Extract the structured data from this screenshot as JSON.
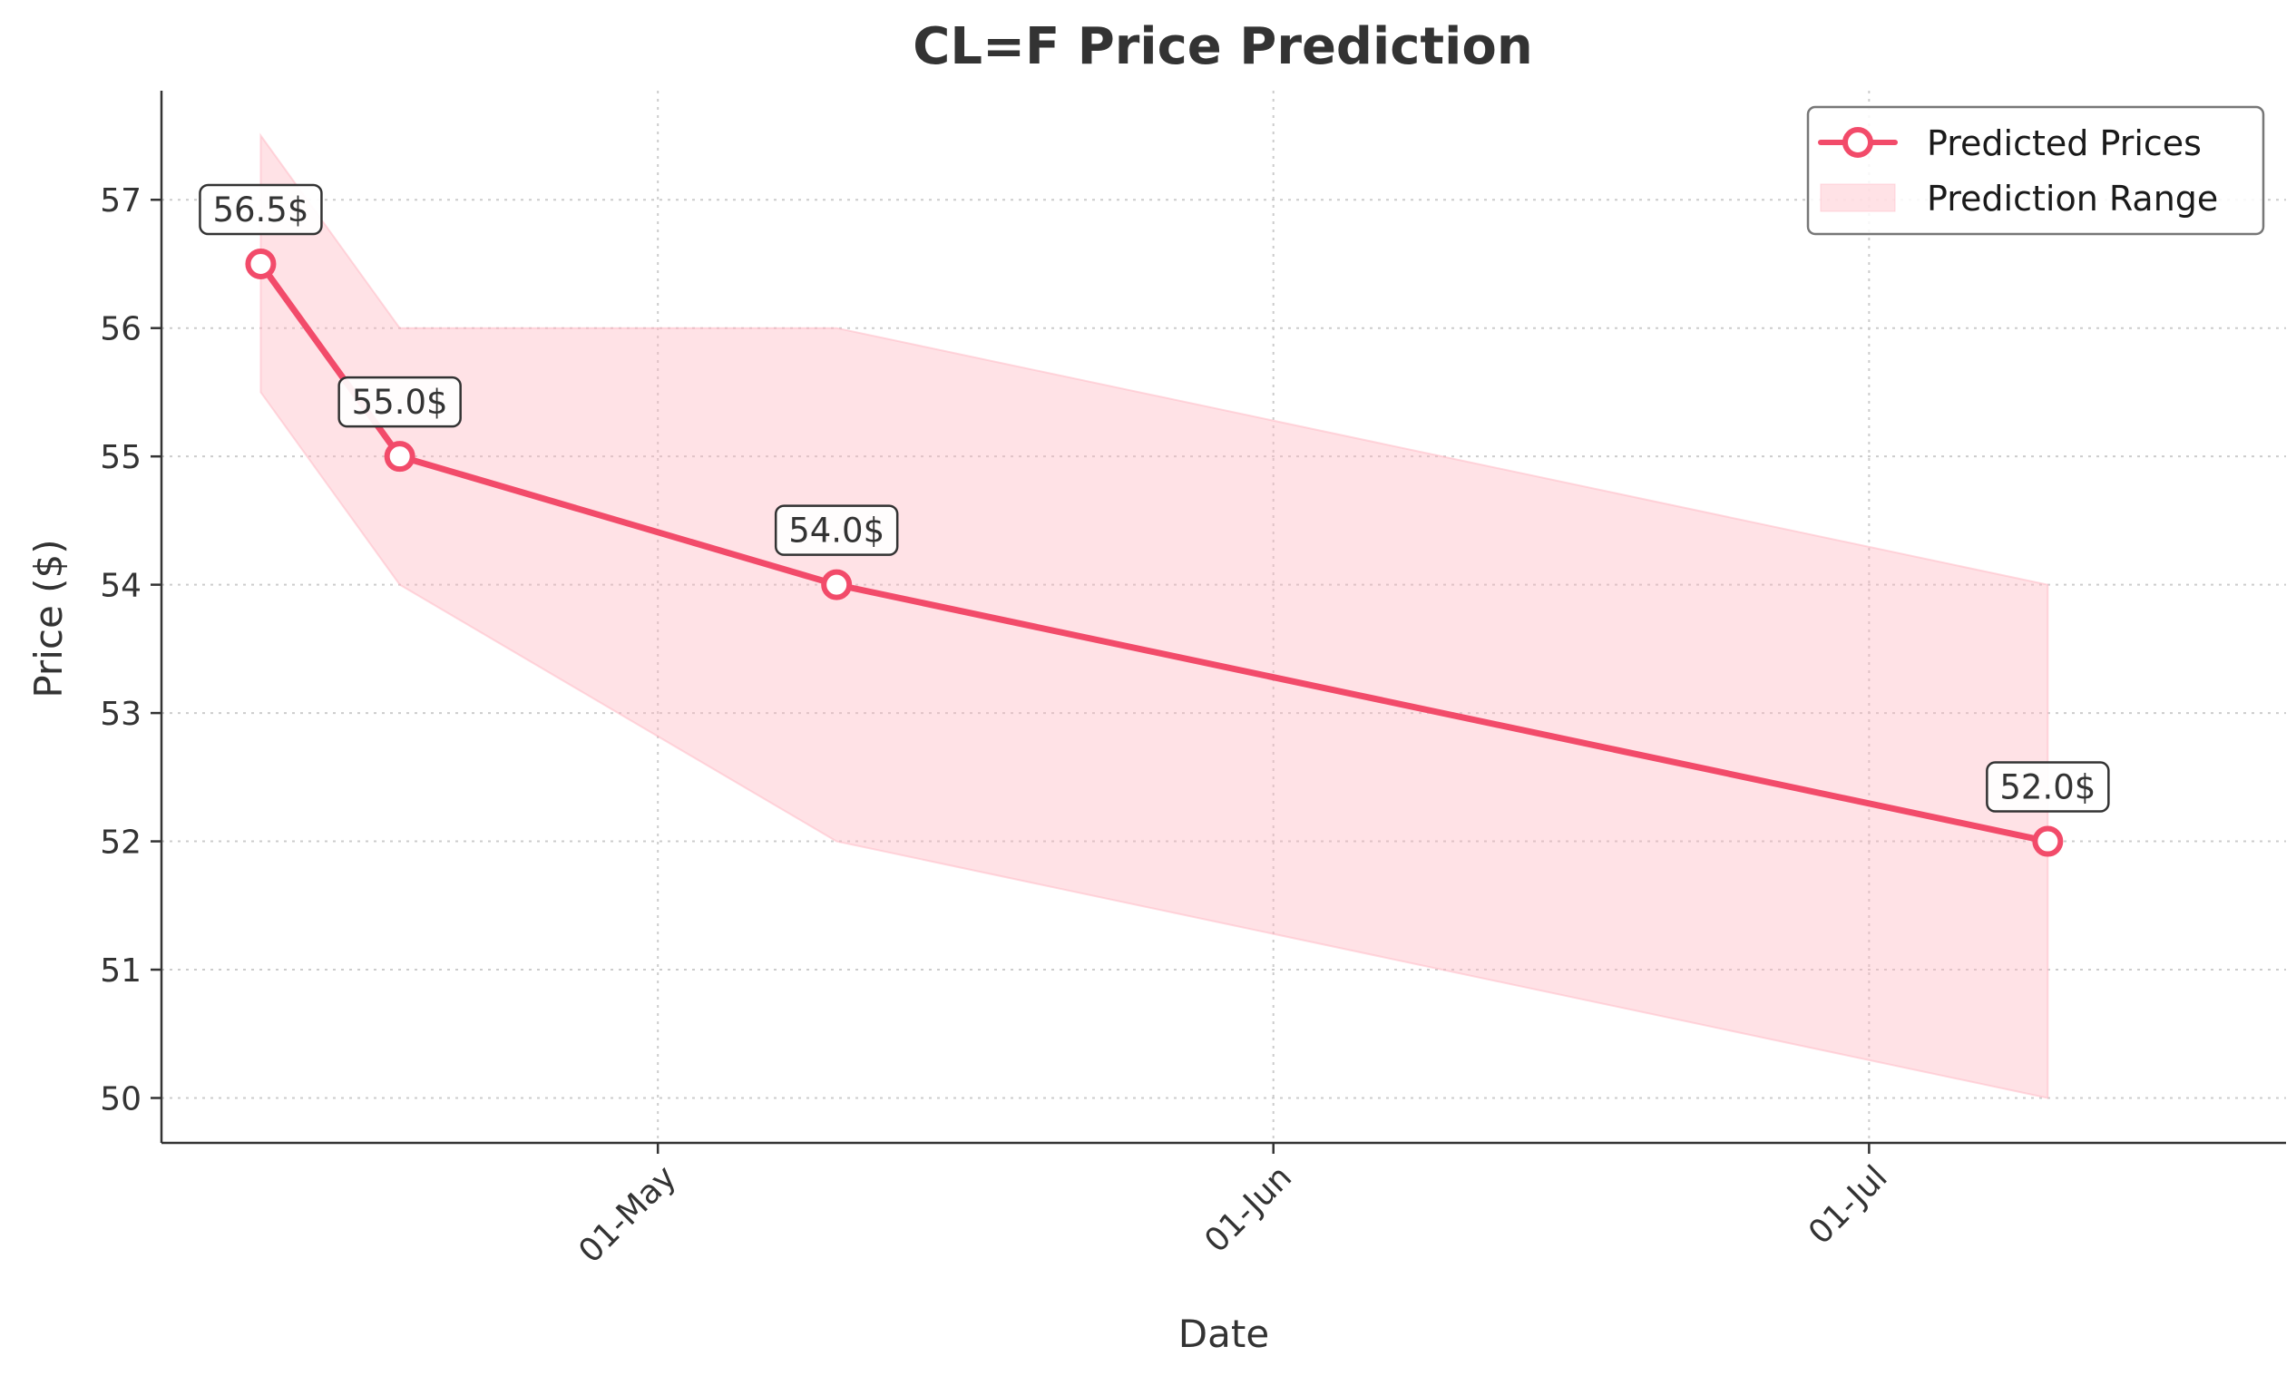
{
  "colors": {
    "line": "#F24B6A",
    "band": "#FFB6C1",
    "text": "#333333",
    "grid": "#cccccc"
  },
  "chart_data": {
    "type": "line",
    "title": "CL=F Price Prediction",
    "xlabel": "Date",
    "ylabel": "Price ($)",
    "ylim": [
      49.65,
      57.85
    ],
    "xlim": [
      "2025-04-06",
      "2025-07-22"
    ],
    "grid": true,
    "legend_position": "top-right",
    "x_ticks": [
      {
        "date": "2025-05-01",
        "label": "01-May"
      },
      {
        "date": "2025-06-01",
        "label": "01-Jun"
      },
      {
        "date": "2025-07-01",
        "label": "01-Jul"
      }
    ],
    "y_ticks": [
      50,
      51,
      52,
      53,
      54,
      55,
      56,
      57
    ],
    "series": [
      {
        "name": "Predicted Prices",
        "x": [
          "2025-04-11",
          "2025-04-18",
          "2025-05-10",
          "2025-07-10"
        ],
        "values": [
          56.5,
          55.0,
          54.0,
          52.0
        ]
      }
    ],
    "band": {
      "name": "Prediction Range",
      "x": [
        "2025-04-11",
        "2025-04-18",
        "2025-05-10",
        "2025-07-10"
      ],
      "lower": [
        55.5,
        54.0,
        52.0,
        50.0
      ],
      "upper": [
        57.5,
        56.0,
        56.0,
        54.0
      ]
    },
    "annotations": [
      "56.5$",
      "55.0$",
      "54.0$",
      "52.0$"
    ]
  }
}
